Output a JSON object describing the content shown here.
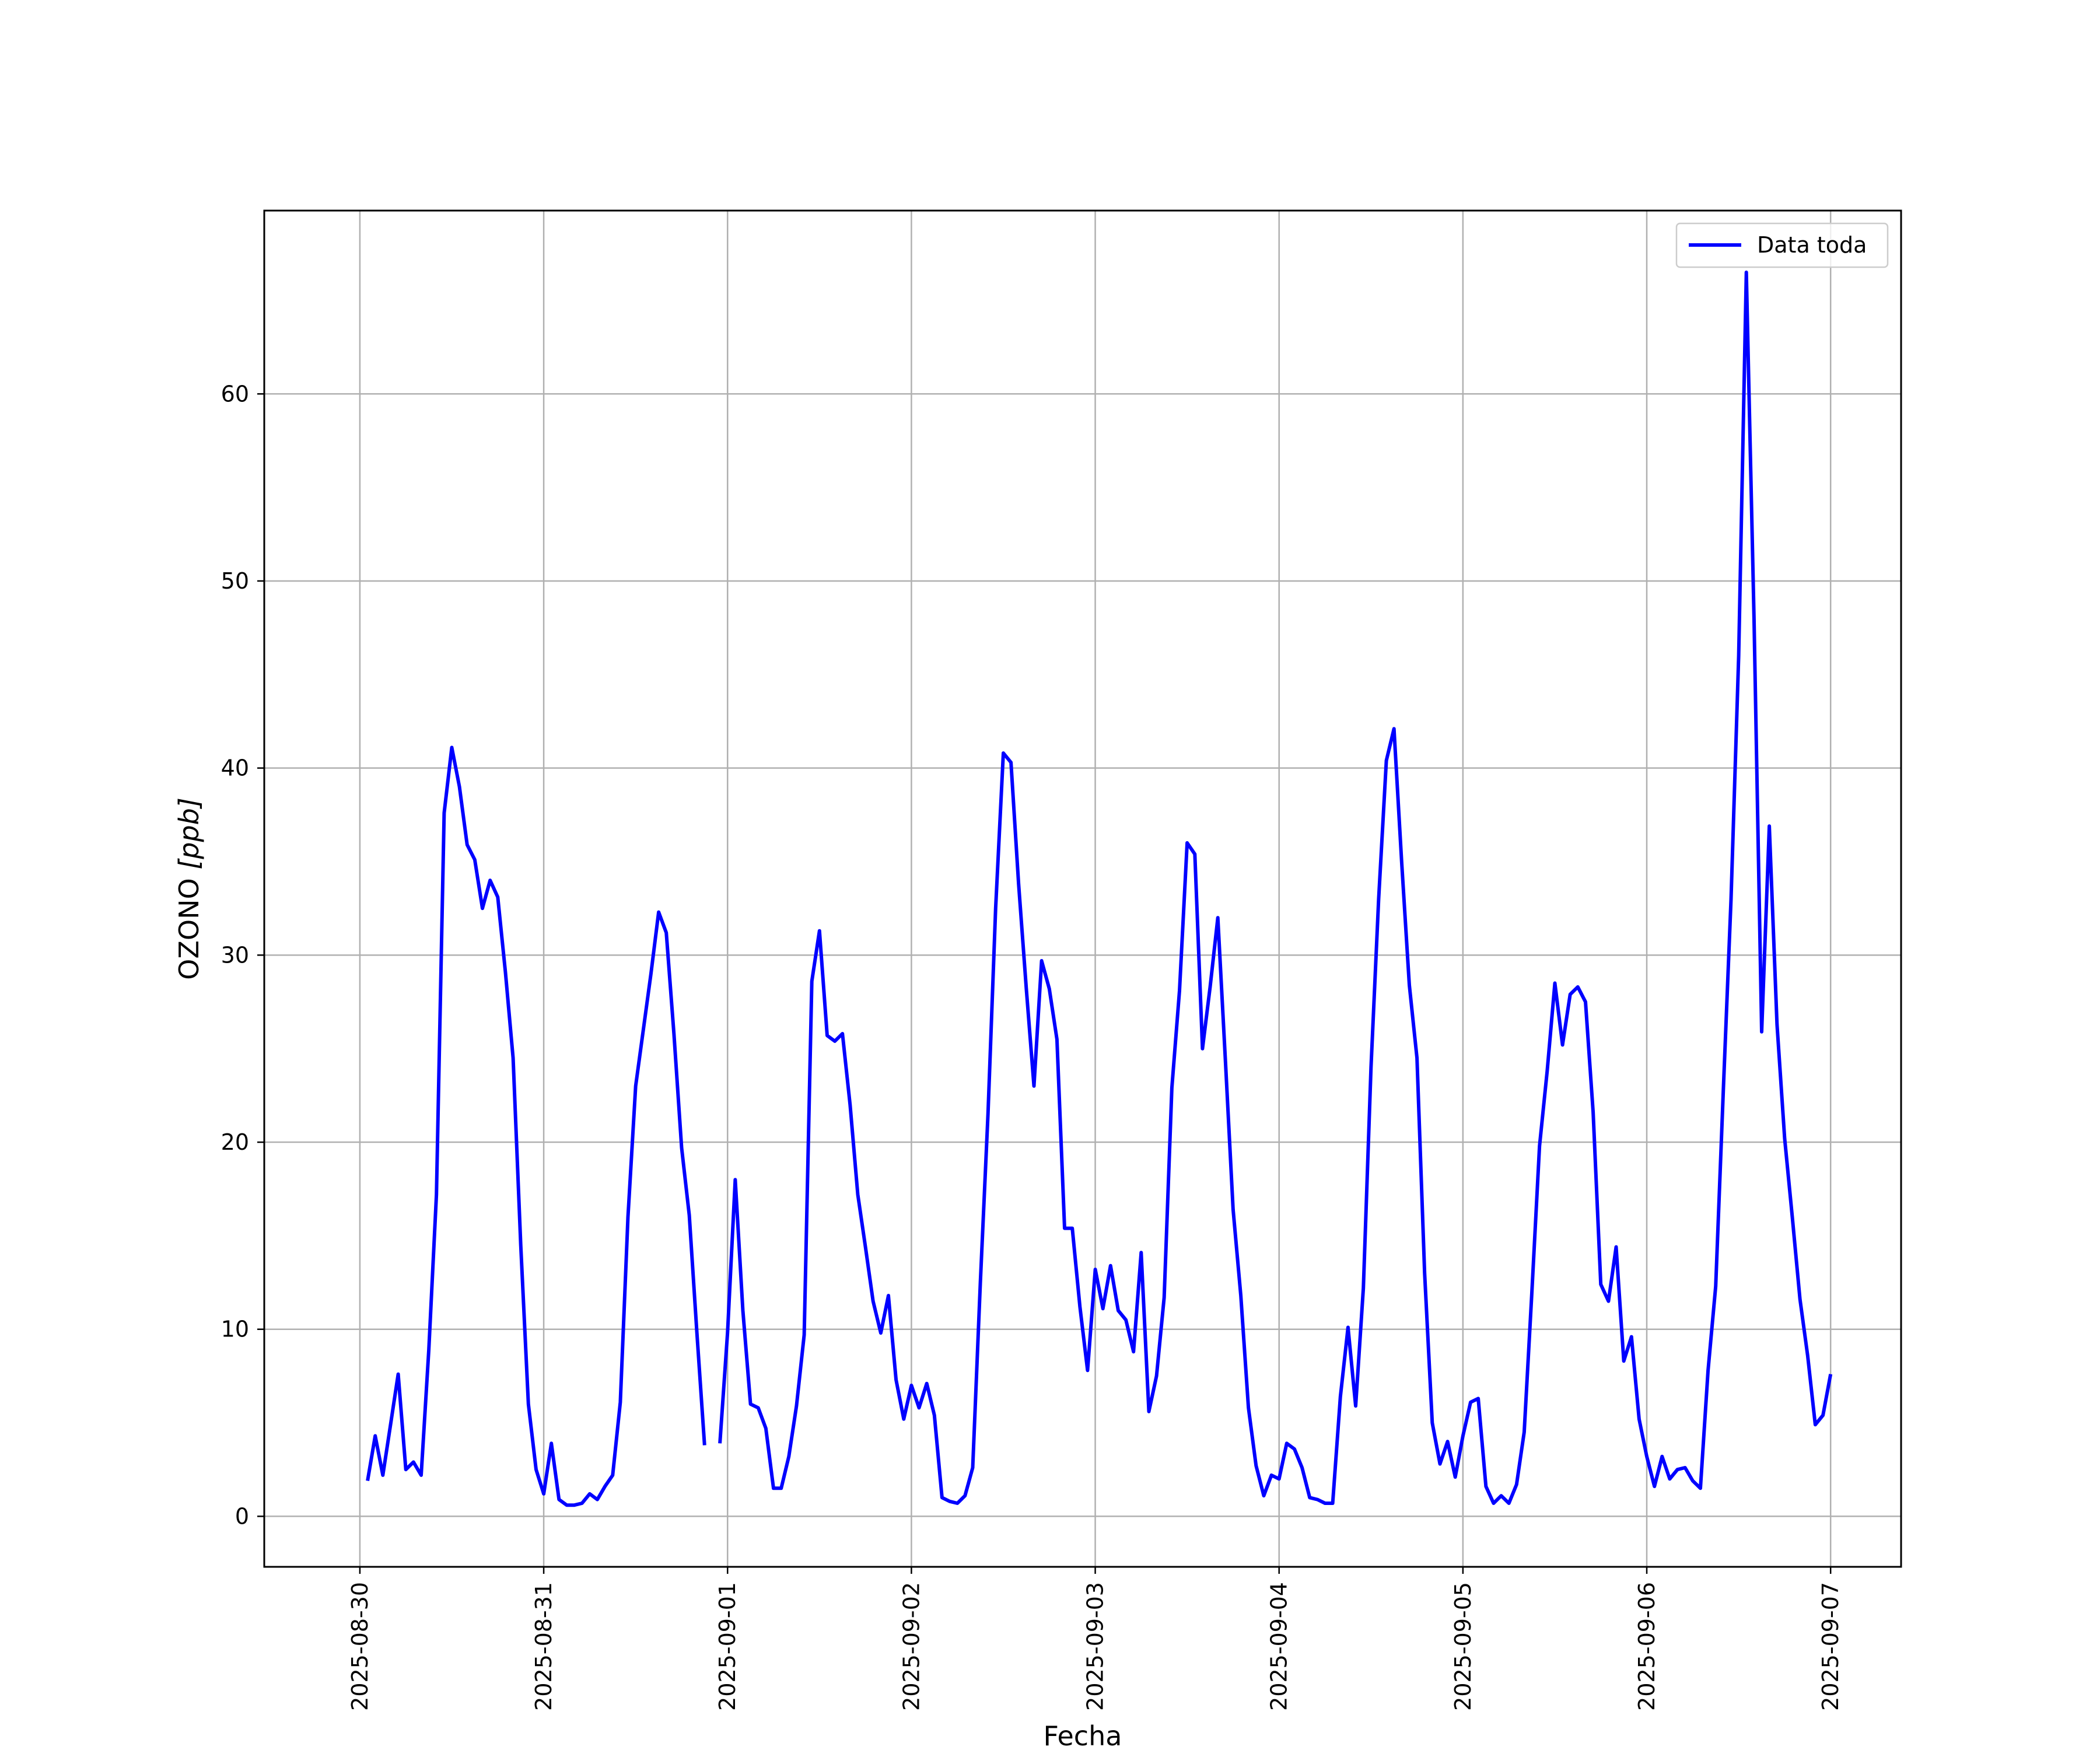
{
  "chart_data": {
    "type": "line",
    "xlabel": "Fecha",
    "ylabel_main": "OZONO ",
    "ylabel_unit": "[ppb]",
    "xlim": [
      "2025-08-29T11:31",
      "2025-09-07T09:12"
    ],
    "ylim": [
      -2.7,
      69.8
    ],
    "x_ticks": [
      "2025-08-30",
      "2025-08-31",
      "2025-09-01",
      "2025-09-02",
      "2025-09-03",
      "2025-09-04",
      "2025-09-05",
      "2025-09-06",
      "2025-09-07"
    ],
    "y_ticks": [
      0,
      10,
      20,
      30,
      40,
      50,
      60
    ],
    "grid": true,
    "legend_position": "top-right",
    "series": [
      {
        "name": "Data toda",
        "color": "#0000ff",
        "points": [
          [
            "2025-08-30T01:00",
            1.9
          ],
          [
            "2025-08-30T02:00",
            4.3
          ],
          [
            "2025-08-30T03:00",
            2.2
          ],
          [
            "2025-08-30T04:00",
            4.9
          ],
          [
            "2025-08-30T05:00",
            7.6
          ],
          [
            "2025-08-30T06:00",
            2.5
          ],
          [
            "2025-08-30T07:00",
            2.9
          ],
          [
            "2025-08-30T08:00",
            2.2
          ],
          [
            "2025-08-30T09:00",
            8.9
          ],
          [
            "2025-08-30T10:00",
            17.2
          ],
          [
            "2025-08-30T11:00",
            37.6
          ],
          [
            "2025-08-30T12:00",
            41.1
          ],
          [
            "2025-08-30T13:00",
            39.0
          ],
          [
            "2025-08-30T14:00",
            35.9
          ],
          [
            "2025-08-30T15:00",
            35.1
          ],
          [
            "2025-08-30T16:00",
            32.5
          ],
          [
            "2025-08-30T17:00",
            34.0
          ],
          [
            "2025-08-30T18:00",
            33.1
          ],
          [
            "2025-08-30T19:00",
            29.1
          ],
          [
            "2025-08-30T20:00",
            24.5
          ],
          [
            "2025-08-30T21:00",
            14.5
          ],
          [
            "2025-08-30T22:00",
            6.0
          ],
          [
            "2025-08-30T23:00",
            2.5
          ],
          [
            "2025-08-31T00:00",
            1.2
          ],
          [
            "2025-08-31T01:00",
            3.9
          ],
          [
            "2025-08-31T02:00",
            0.9
          ],
          [
            "2025-08-31T03:00",
            0.6
          ],
          [
            "2025-08-31T04:00",
            0.6
          ],
          [
            "2025-08-31T05:00",
            0.7
          ],
          [
            "2025-08-31T06:00",
            1.2
          ],
          [
            "2025-08-31T07:00",
            0.9
          ],
          [
            "2025-08-31T08:00",
            1.6
          ],
          [
            "2025-08-31T09:00",
            2.2
          ],
          [
            "2025-08-31T10:00",
            6.1
          ],
          [
            "2025-08-31T11:00",
            16.0
          ],
          [
            "2025-08-31T12:00",
            23.0
          ],
          [
            "2025-08-31T13:00",
            26.0
          ],
          [
            "2025-08-31T14:00",
            29.0
          ],
          [
            "2025-08-31T15:00",
            32.3
          ],
          [
            "2025-08-31T16:00",
            31.2
          ],
          [
            "2025-08-31T17:00",
            25.8
          ],
          [
            "2025-08-31T18:00",
            19.7
          ],
          [
            "2025-08-31T19:00",
            16.1
          ],
          [
            "2025-08-31T20:00",
            9.8
          ],
          [
            "2025-08-31T21:00",
            3.8
          ],
          null,
          [
            "2025-08-31T23:00",
            3.9
          ],
          [
            "2025-09-01T00:00",
            9.8
          ],
          [
            "2025-09-01T01:00",
            18.0
          ],
          [
            "2025-09-01T02:00",
            11.0
          ],
          [
            "2025-09-01T03:00",
            6.0
          ],
          [
            "2025-09-01T04:00",
            5.8
          ],
          [
            "2025-09-01T05:00",
            4.7
          ],
          [
            "2025-09-01T06:00",
            1.5
          ],
          [
            "2025-09-01T07:00",
            1.5
          ],
          [
            "2025-09-01T08:00",
            3.2
          ],
          [
            "2025-09-01T09:00",
            5.9
          ],
          [
            "2025-09-01T10:00",
            9.7
          ],
          [
            "2025-09-01T11:00",
            28.6
          ],
          [
            "2025-09-01T12:00",
            31.3
          ],
          [
            "2025-09-01T13:00",
            25.7
          ],
          [
            "2025-09-01T14:00",
            25.4
          ],
          [
            "2025-09-01T15:00",
            25.8
          ],
          [
            "2025-09-01T16:00",
            22.0
          ],
          [
            "2025-09-01T17:00",
            17.2
          ],
          [
            "2025-09-01T18:00",
            14.4
          ],
          [
            "2025-09-01T19:00",
            11.5
          ],
          [
            "2025-09-01T20:00",
            9.8
          ],
          [
            "2025-09-01T21:00",
            11.8
          ],
          [
            "2025-09-01T22:00",
            7.3
          ],
          [
            "2025-09-01T23:00",
            5.2
          ],
          [
            "2025-09-02T00:00",
            7.0
          ],
          [
            "2025-09-02T01:00",
            5.8
          ],
          [
            "2025-09-02T02:00",
            7.1
          ],
          [
            "2025-09-02T03:00",
            5.4
          ],
          [
            "2025-09-02T04:00",
            1.0
          ],
          [
            "2025-09-02T05:00",
            0.8
          ],
          [
            "2025-09-02T06:00",
            0.7
          ],
          [
            "2025-09-02T07:00",
            1.1
          ],
          [
            "2025-09-02T08:00",
            2.6
          ],
          [
            "2025-09-02T09:00",
            12.5
          ],
          [
            "2025-09-02T10:00",
            21.5
          ],
          [
            "2025-09-02T11:00",
            32.5
          ],
          [
            "2025-09-02T12:00",
            40.8
          ],
          [
            "2025-09-02T13:00",
            40.3
          ],
          [
            "2025-09-02T14:00",
            33.8
          ],
          [
            "2025-09-02T15:00",
            28.2
          ],
          [
            "2025-09-02T16:00",
            23.0
          ],
          [
            "2025-09-02T17:00",
            29.7
          ],
          [
            "2025-09-02T18:00",
            28.2
          ],
          [
            "2025-09-02T19:00",
            25.5
          ],
          [
            "2025-09-02T20:00",
            15.4
          ],
          [
            "2025-09-02T21:00",
            15.4
          ],
          [
            "2025-09-02T22:00",
            11.2
          ],
          [
            "2025-09-02T23:00",
            7.8
          ],
          [
            "2025-09-03T00:00",
            13.2
          ],
          [
            "2025-09-03T01:00",
            11.1
          ],
          [
            "2025-09-03T02:00",
            13.4
          ],
          [
            "2025-09-03T03:00",
            11.0
          ],
          [
            "2025-09-03T04:00",
            10.5
          ],
          [
            "2025-09-03T05:00",
            8.8
          ],
          [
            "2025-09-03T06:00",
            14.1
          ],
          [
            "2025-09-03T07:00",
            5.6
          ],
          [
            "2025-09-03T08:00",
            7.5
          ],
          [
            "2025-09-03T09:00",
            11.7
          ],
          [
            "2025-09-03T10:00",
            22.9
          ],
          [
            "2025-09-03T11:00",
            28.1
          ],
          [
            "2025-09-03T12:00",
            36.0
          ],
          [
            "2025-09-03T13:00",
            35.4
          ],
          [
            "2025-09-03T14:00",
            25.0
          ],
          [
            "2025-09-03T15:00",
            28.3
          ],
          [
            "2025-09-03T16:00",
            32.0
          ],
          [
            "2025-09-03T17:00",
            24.3
          ],
          [
            "2025-09-03T18:00",
            16.4
          ],
          [
            "2025-09-03T19:00",
            11.8
          ],
          [
            "2025-09-03T20:00",
            5.8
          ],
          [
            "2025-09-03T21:00",
            2.7
          ],
          [
            "2025-09-03T22:00",
            1.1
          ],
          [
            "2025-09-03T23:00",
            2.2
          ],
          [
            "2025-09-04T00:00",
            2.0
          ],
          [
            "2025-09-04T01:00",
            3.9
          ],
          [
            "2025-09-04T02:00",
            3.6
          ],
          [
            "2025-09-04T03:00",
            2.6
          ],
          [
            "2025-09-04T04:00",
            1.0
          ],
          [
            "2025-09-04T05:00",
            0.9
          ],
          [
            "2025-09-04T06:00",
            0.7
          ],
          [
            "2025-09-04T07:00",
            0.7
          ],
          [
            "2025-09-04T08:00",
            6.4
          ],
          [
            "2025-09-04T09:00",
            10.1
          ],
          [
            "2025-09-04T10:00",
            5.9
          ],
          [
            "2025-09-04T11:00",
            12.2
          ],
          [
            "2025-09-04T12:00",
            24.0
          ],
          [
            "2025-09-04T13:00",
            33.0
          ],
          [
            "2025-09-04T14:00",
            40.4
          ],
          [
            "2025-09-04T15:00",
            42.1
          ],
          [
            "2025-09-04T16:00",
            35.0
          ],
          [
            "2025-09-04T17:00",
            28.4
          ],
          [
            "2025-09-04T18:00",
            24.5
          ],
          [
            "2025-09-04T19:00",
            13.0
          ],
          [
            "2025-09-04T20:00",
            5.0
          ],
          [
            "2025-09-04T21:00",
            2.8
          ],
          [
            "2025-09-04T22:00",
            4.0
          ],
          [
            "2025-09-04T23:00",
            2.1
          ],
          [
            "2025-09-05T00:00",
            4.3
          ],
          [
            "2025-09-05T01:00",
            6.1
          ],
          [
            "2025-09-05T02:00",
            6.3
          ],
          [
            "2025-09-05T03:00",
            1.6
          ],
          [
            "2025-09-05T04:00",
            0.7
          ],
          [
            "2025-09-05T05:00",
            1.1
          ],
          [
            "2025-09-05T06:00",
            0.7
          ],
          [
            "2025-09-05T07:00",
            1.7
          ],
          [
            "2025-09-05T08:00",
            4.5
          ],
          [
            "2025-09-05T09:00",
            12.0
          ],
          [
            "2025-09-05T10:00",
            19.8
          ],
          [
            "2025-09-05T11:00",
            23.8
          ],
          [
            "2025-09-05T12:00",
            28.5
          ],
          [
            "2025-09-05T13:00",
            25.2
          ],
          [
            "2025-09-05T14:00",
            27.9
          ],
          [
            "2025-09-05T15:00",
            28.3
          ],
          [
            "2025-09-05T16:00",
            27.5
          ],
          [
            "2025-09-05T17:00",
            21.6
          ],
          [
            "2025-09-05T18:00",
            12.4
          ],
          [
            "2025-09-05T19:00",
            11.5
          ],
          [
            "2025-09-05T20:00",
            14.4
          ],
          [
            "2025-09-05T21:00",
            8.3
          ],
          [
            "2025-09-05T22:00",
            9.6
          ],
          [
            "2025-09-05T23:00",
            5.2
          ],
          [
            "2025-09-06T00:00",
            3.2
          ],
          [
            "2025-09-06T01:00",
            1.6
          ],
          [
            "2025-09-06T02:00",
            3.2
          ],
          [
            "2025-09-06T03:00",
            2.0
          ],
          [
            "2025-09-06T04:00",
            2.5
          ],
          [
            "2025-09-06T05:00",
            2.6
          ],
          [
            "2025-09-06T06:00",
            1.9
          ],
          [
            "2025-09-06T07:00",
            1.5
          ],
          [
            "2025-09-06T08:00",
            7.8
          ],
          [
            "2025-09-06T09:00",
            12.3
          ],
          [
            "2025-09-06T10:00",
            22.8
          ],
          [
            "2025-09-06T11:00",
            33.0
          ],
          [
            "2025-09-06T12:00",
            46.0
          ],
          [
            "2025-09-06T13:00",
            66.5
          ],
          [
            "2025-09-06T14:00",
            48.0
          ],
          [
            "2025-09-06T15:00",
            25.9
          ],
          [
            "2025-09-06T16:00",
            36.9
          ],
          [
            "2025-09-06T17:00",
            26.3
          ],
          [
            "2025-09-06T18:00",
            20.2
          ],
          [
            "2025-09-06T19:00",
            16.0
          ],
          [
            "2025-09-06T20:00",
            11.6
          ],
          [
            "2025-09-06T21:00",
            8.6
          ],
          [
            "2025-09-06T22:00",
            4.9
          ],
          [
            "2025-09-06T23:00",
            5.4
          ],
          [
            "2025-09-07T00:00",
            7.6
          ]
        ]
      }
    ]
  }
}
